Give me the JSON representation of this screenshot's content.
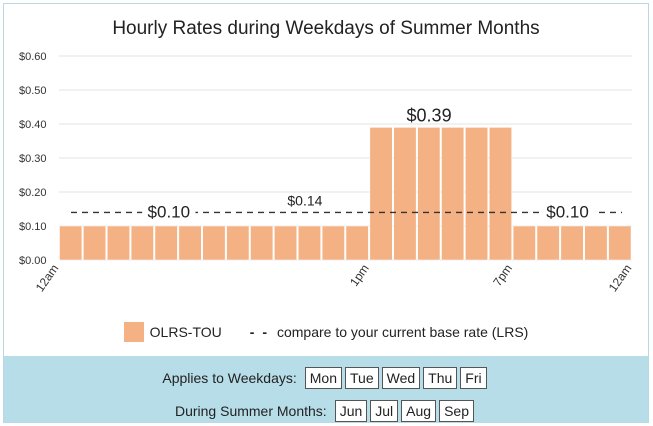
{
  "chart_data": {
    "type": "bar",
    "title": "Hourly Rates during Weekdays of Summer Months",
    "ylim": [
      0,
      0.6
    ],
    "y_ticks": [
      "$0.00",
      "$0.10",
      "$0.20",
      "$0.30",
      "$0.40",
      "$0.50",
      "$0.60"
    ],
    "x_tick_labels": [
      "12am",
      "1pm",
      "7pm",
      "12am"
    ],
    "hours": [
      0,
      1,
      2,
      3,
      4,
      5,
      6,
      7,
      8,
      9,
      10,
      11,
      12,
      13,
      14,
      15,
      16,
      17,
      18,
      19,
      20,
      21,
      22,
      23
    ],
    "series": [
      {
        "name": "OLRS-TOU",
        "color": "#f4b183",
        "values": [
          0.1,
          0.1,
          0.1,
          0.1,
          0.1,
          0.1,
          0.1,
          0.1,
          0.1,
          0.1,
          0.1,
          0.1,
          0.1,
          0.39,
          0.39,
          0.39,
          0.39,
          0.39,
          0.39,
          0.1,
          0.1,
          0.1,
          0.1,
          0.1
        ]
      }
    ],
    "reference_line": {
      "label": "compare to your current base rate (LRS)",
      "value": 0.14,
      "display": "$0.14"
    },
    "annotations": [
      "$0.10",
      "$0.39",
      "$0.10"
    ],
    "grid": true,
    "legend_position": "bottom"
  },
  "legend": {
    "series_label": "OLRS-TOU",
    "dash_glyph": "- -",
    "reference_label": "compare to your current base rate (LRS)"
  },
  "filters": {
    "weekdays_label": "Applies to Weekdays:",
    "weekdays": [
      "Mon",
      "Tue",
      "Wed",
      "Thu",
      "Fri"
    ],
    "months_label": "During Summer Months:",
    "months": [
      "Jun",
      "Jul",
      "Aug",
      "Sep"
    ]
  }
}
